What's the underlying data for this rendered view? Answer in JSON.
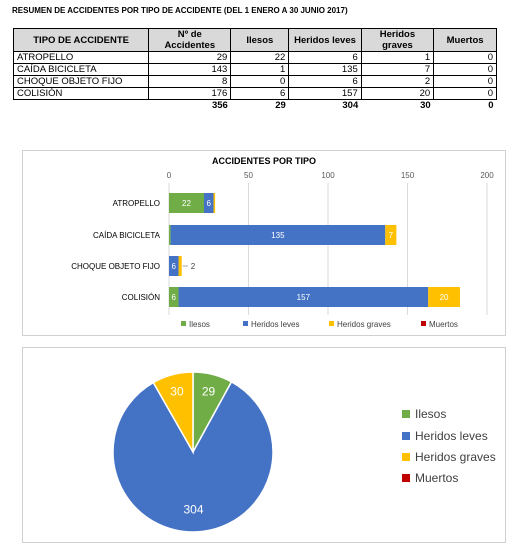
{
  "summary": {
    "title": "RESUMEN DE ACCIDENTES POR TIPO DE ACCIDENTE (DEL 1 ENERO A 30 JUNIO 2017)",
    "headers": [
      "TIPO DE ACCIDENTE",
      "Nº de Accidentes",
      "Ilesos",
      "Heridos leves",
      "Heridos graves",
      "Muertos"
    ],
    "rows": [
      [
        "ATROPELLO",
        "29",
        "22",
        "6",
        "1",
        "0"
      ],
      [
        "CAÍDA BICICLETA",
        "143",
        "1",
        "135",
        "7",
        "0"
      ],
      [
        "CHOQUE OBJETO FIJO",
        "8",
        "0",
        "6",
        "2",
        "0"
      ],
      [
        "COLISIÓN",
        "176",
        "6",
        "157",
        "20",
        "0"
      ]
    ],
    "totals": [
      "",
      "356",
      "29",
      "304",
      "30",
      "0"
    ]
  },
  "colors": {
    "ilesos": "#70ad47",
    "heridos_leves": "#4472c4",
    "heridos_graves": "#ffc000",
    "muertos": "#c00000"
  },
  "chart_data": [
    {
      "type": "bar",
      "orientation": "horizontal",
      "stacked": true,
      "title": "ACCIDENTES POR TIPO",
      "categories": [
        "ATROPELLO",
        "CAÍDA BICICLETA",
        "CHOQUE OBJETO FIJO",
        "COLISIÓN"
      ],
      "series": [
        {
          "name": "Ilesos",
          "values": [
            22,
            1,
            0,
            6
          ]
        },
        {
          "name": "Heridos leves",
          "values": [
            6,
            135,
            6,
            157
          ]
        },
        {
          "name": "Heridos graves",
          "values": [
            1,
            7,
            2,
            20
          ]
        },
        {
          "name": "Muertos",
          "values": [
            0,
            0,
            0,
            0
          ]
        }
      ],
      "data_labels": [
        [
          "22",
          "6",
          "",
          ""
        ],
        [
          "",
          "135",
          "7",
          ""
        ],
        [
          "",
          "6",
          "2",
          ""
        ],
        [
          "6",
          "157",
          "20",
          ""
        ]
      ],
      "xlim": [
        0,
        200
      ],
      "xticks": [
        0,
        50,
        100,
        150,
        200
      ],
      "axis_position": "top",
      "grid": true,
      "legend": "bottom"
    },
    {
      "type": "pie",
      "slices": [
        {
          "name": "Ilesos",
          "value": 29,
          "label": "29"
        },
        {
          "name": "Heridos leves",
          "value": 304,
          "label": "304"
        },
        {
          "name": "Heridos graves",
          "value": 30,
          "label": "30"
        },
        {
          "name": "Muertos",
          "value": 0,
          "label": ""
        }
      ],
      "legend": "right"
    }
  ]
}
